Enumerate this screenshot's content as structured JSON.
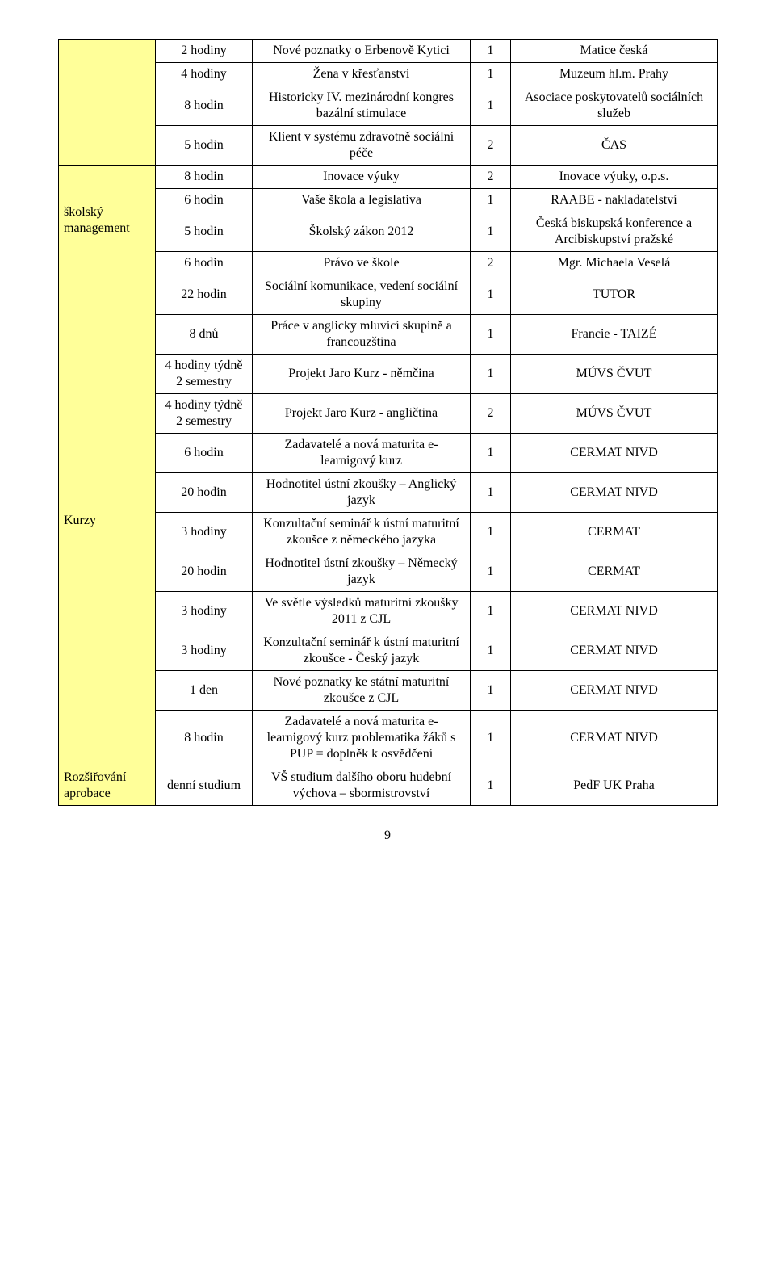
{
  "page_number": "9",
  "colors": {
    "category_bg": "#ffff99",
    "border": "#000000",
    "text": "#000000",
    "background": "#ffffff"
  },
  "categories": {
    "cat1": "",
    "cat2": "školský management",
    "cat3": "Kurzy",
    "cat4": "Rozšiřování aprobace"
  },
  "rows": {
    "r1": {
      "dur": "2 hodiny",
      "topic": "Nové poznatky o Erbenově Kytici",
      "cnt": "1",
      "org": "Matice česká"
    },
    "r2": {
      "dur": "4 hodiny",
      "topic": "Žena v křesťanství",
      "cnt": "1",
      "org": "Muzeum hl.m. Prahy"
    },
    "r3": {
      "dur": "8 hodin",
      "topic": "Historicky IV. mezinárodní kongres bazální stimulace",
      "cnt": "1",
      "org": "Asociace poskytovatelů sociálních služeb"
    },
    "r4": {
      "dur": "5 hodin",
      "topic": "Klient v systému zdravotně sociální péče",
      "cnt": "2",
      "org": "ČAS"
    },
    "r5": {
      "dur": "8 hodin",
      "topic": "Inovace výuky",
      "cnt": "2",
      "org": "Inovace výuky, o.p.s."
    },
    "r6": {
      "dur": "6 hodin",
      "topic": "Vaše škola a legislativa",
      "cnt": "1",
      "org": "RAABE - nakladatelství"
    },
    "r7": {
      "dur": "5 hodin",
      "topic": "Školský zákon 2012",
      "cnt": "1",
      "org": "Česká biskupská konference a Arcibiskupství pražské"
    },
    "r8": {
      "dur": "6 hodin",
      "topic": "Právo ve škole",
      "cnt": "2",
      "org": "Mgr. Michaela Veselá"
    },
    "r9": {
      "dur": "22 hodin",
      "topic": "Sociální komunikace, vedení sociální skupiny",
      "cnt": "1",
      "org": "TUTOR"
    },
    "r10": {
      "dur": "8 dnů",
      "topic": "Práce v anglicky mluvící skupině a francouzština",
      "cnt": "1",
      "org": "Francie - TAIZÉ"
    },
    "r11": {
      "dur": "4 hodiny týdně 2 semestry",
      "topic": "Projekt Jaro Kurz - němčina",
      "cnt": "1",
      "org": "MÚVS ČVUT"
    },
    "r12": {
      "dur": "4 hodiny týdně 2 semestry",
      "topic": "Projekt Jaro Kurz - angličtina",
      "cnt": "2",
      "org": "MÚVS ČVUT"
    },
    "r13": {
      "dur": "6 hodin",
      "topic": "Zadavatelé a nová maturita e- learnigový kurz",
      "cnt": "1",
      "org": "CERMAT NIVD"
    },
    "r14": {
      "dur": "20 hodin",
      "topic": "Hodnotitel ústní zkoušky – Anglický jazyk",
      "cnt": "1",
      "org": "CERMAT NIVD"
    },
    "r15": {
      "dur": "3 hodiny",
      "topic": "Konzultační seminář k ústní maturitní zkoušce z německého jazyka",
      "cnt": "1",
      "org": "CERMAT"
    },
    "r16": {
      "dur": "20 hodin",
      "topic": "Hodnotitel ústní zkoušky – Německý jazyk",
      "cnt": "1",
      "org": "CERMAT"
    },
    "r17": {
      "dur": "3 hodiny",
      "topic": "Ve světle výsledků maturitní zkoušky 2011 z CJL",
      "cnt": "1",
      "org": "CERMAT NIVD"
    },
    "r18": {
      "dur": "3 hodiny",
      "topic": "Konzultační seminář k ústní maturitní zkoušce - Český jazyk",
      "cnt": "1",
      "org": "CERMAT NIVD"
    },
    "r19": {
      "dur": "1 den",
      "topic": "Nové poznatky ke státní maturitní zkoušce z CJL",
      "cnt": "1",
      "org": "CERMAT NIVD"
    },
    "r20": {
      "dur": "8 hodin",
      "topic": "Zadavatelé a nová maturita e- learnigový kurz problematika žáků s PUP = doplněk k osvědčení",
      "cnt": "1",
      "org": "CERMAT NIVD"
    },
    "r21": {
      "dur": "denní studium",
      "topic": "VŠ studium dalšího oboru hudební výchova – sbormistrovství",
      "cnt": "1",
      "org": "PedF UK Praha"
    }
  }
}
